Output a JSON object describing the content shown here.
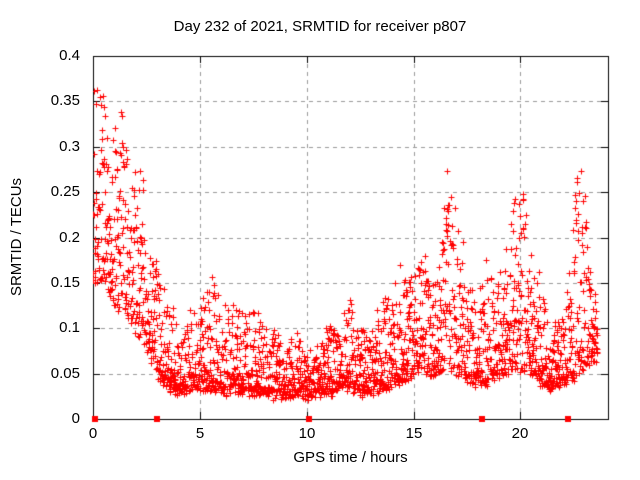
{
  "chart_data": {
    "type": "scatter",
    "title": "Day 232 of 2021, SRMTID for receiver p807",
    "xlabel": "GPS time / hours",
    "ylabel": "SRMTID / TECUs",
    "xlim": [
      0,
      24.1
    ],
    "ylim": [
      0,
      0.4
    ],
    "grid": true,
    "grid_color": "#9a9a9a",
    "border_color": "#000000",
    "xticks": [
      {
        "v": 0,
        "label": "0"
      },
      {
        "v": 5,
        "label": "5"
      },
      {
        "v": 10,
        "label": "10"
      },
      {
        "v": 15,
        "label": "15"
      },
      {
        "v": 20,
        "label": "20"
      }
    ],
    "yticks": [
      {
        "v": 0,
        "label": "0"
      },
      {
        "v": 0.05,
        "label": "0.05"
      },
      {
        "v": 0.1,
        "label": "0.1"
      },
      {
        "v": 0.15,
        "label": "0.15"
      },
      {
        "v": 0.2,
        "label": "0.2"
      },
      {
        "v": 0.25,
        "label": "0.25"
      },
      {
        "v": 0.3,
        "label": "0.3"
      },
      {
        "v": 0.35,
        "label": "0.35"
      },
      {
        "v": 0.4,
        "label": "0.4"
      }
    ],
    "marker": {
      "shape": "plus",
      "color": "#ff0000",
      "size": 7
    },
    "seed": 20211232,
    "sampling_interval_hours": 0.008333,
    "drop_fraction": 0.12,
    "value_jitter": 0.012,
    "envelope": [
      [
        0.0,
        0.15,
        0.375,
        1.6
      ],
      [
        0.3,
        0.15,
        0.37,
        1.6
      ],
      [
        0.7,
        0.14,
        0.33,
        1.6
      ],
      [
        1.0,
        0.125,
        0.345,
        1.7
      ],
      [
        1.4,
        0.12,
        0.33,
        1.7
      ],
      [
        1.8,
        0.105,
        0.27,
        1.7
      ],
      [
        2.2,
        0.09,
        0.3,
        1.9
      ],
      [
        2.6,
        0.075,
        0.23,
        1.9
      ],
      [
        3.0,
        0.05,
        0.17,
        2.0
      ],
      [
        3.5,
        0.035,
        0.14,
        2.2
      ],
      [
        4.0,
        0.03,
        0.11,
        2.2
      ],
      [
        4.5,
        0.035,
        0.12,
        2.2
      ],
      [
        5.0,
        0.035,
        0.125,
        2.2
      ],
      [
        5.6,
        0.035,
        0.165,
        2.3
      ],
      [
        6.2,
        0.03,
        0.12,
        2.2
      ],
      [
        6.5,
        0.035,
        0.15,
        2.3
      ],
      [
        7.0,
        0.03,
        0.115,
        2.2
      ],
      [
        7.5,
        0.03,
        0.125,
        2.3
      ],
      [
        8.0,
        0.03,
        0.115,
        2.3
      ],
      [
        8.5,
        0.025,
        0.095,
        2.2
      ],
      [
        9.0,
        0.025,
        0.085,
        2.2
      ],
      [
        9.5,
        0.03,
        0.095,
        2.2
      ],
      [
        10.0,
        0.025,
        0.07,
        2.0
      ],
      [
        10.5,
        0.03,
        0.08,
        2.1
      ],
      [
        11.0,
        0.03,
        0.1,
        2.2
      ],
      [
        11.6,
        0.035,
        0.115,
        2.2
      ],
      [
        12.0,
        0.035,
        0.13,
        2.3
      ],
      [
        12.5,
        0.03,
        0.095,
        2.2
      ],
      [
        13.0,
        0.03,
        0.105,
        2.2
      ],
      [
        13.6,
        0.035,
        0.135,
        2.2
      ],
      [
        14.1,
        0.04,
        0.165,
        2.1
      ],
      [
        14.6,
        0.045,
        0.175,
        2.1
      ],
      [
        15.0,
        0.05,
        0.165,
        2.0
      ],
      [
        15.5,
        0.05,
        0.185,
        2.0
      ],
      [
        16.0,
        0.05,
        0.155,
        2.0
      ],
      [
        16.3,
        0.055,
        0.19,
        1.8
      ],
      [
        16.55,
        0.06,
        0.285,
        1.3
      ],
      [
        16.8,
        0.055,
        0.24,
        1.5
      ],
      [
        17.2,
        0.05,
        0.215,
        1.8
      ],
      [
        17.6,
        0.04,
        0.15,
        2.1
      ],
      [
        18.0,
        0.04,
        0.125,
        2.1
      ],
      [
        18.4,
        0.04,
        0.185,
        2.2
      ],
      [
        19.0,
        0.05,
        0.16,
        2.0
      ],
      [
        19.4,
        0.05,
        0.215,
        1.7
      ],
      [
        19.9,
        0.055,
        0.26,
        1.5
      ],
      [
        20.2,
        0.055,
        0.245,
        1.6
      ],
      [
        20.6,
        0.05,
        0.205,
        1.9
      ],
      [
        21.0,
        0.04,
        0.14,
        2.1
      ],
      [
        21.5,
        0.035,
        0.115,
        2.2
      ],
      [
        22.0,
        0.04,
        0.12,
        2.2
      ],
      [
        22.4,
        0.045,
        0.19,
        2.0
      ],
      [
        22.65,
        0.05,
        0.305,
        1.9
      ],
      [
        23.0,
        0.06,
        0.25,
        1.7
      ],
      [
        23.25,
        0.06,
        0.16,
        1.8
      ],
      [
        23.6,
        0.065,
        0.135,
        1.8
      ]
    ],
    "zero_markers": {
      "shape": "filled-square",
      "color": "#ff0000",
      "size": 6,
      "times": [
        0.08,
        2.98,
        10.1,
        18.2,
        22.25
      ]
    }
  }
}
